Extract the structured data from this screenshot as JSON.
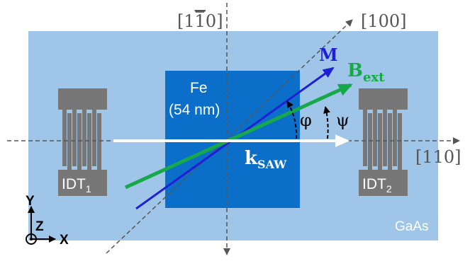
{
  "labels": {
    "dir_1m10": {
      "a": "[1",
      "b": "1",
      "c": "0]"
    },
    "dir_100": "[100]",
    "dir_110": "[110]",
    "fe_line1": "Fe",
    "fe_line2": "(54 nm)",
    "magnetization": "M",
    "bext_main": "B",
    "bext_sub": "ext",
    "ksaw_main": "k",
    "ksaw_sub": "SAW",
    "phi": "φ",
    "psi": "ψ",
    "idt1_main": "IDT",
    "idt1_sub": "1",
    "idt2_main": "IDT",
    "idt2_sub": "2",
    "substrate": "GaAs",
    "axis_y": "Y",
    "axis_z": "Z",
    "axis_x": "X"
  },
  "colors": {
    "substrate": "#9fc5e8",
    "fe_film": "#0b6fc9",
    "idt": "#777777",
    "magnetization": "#1f1fd8",
    "bext": "#17a84a",
    "ksaw": "#ffffff",
    "guide": "#555555"
  }
}
